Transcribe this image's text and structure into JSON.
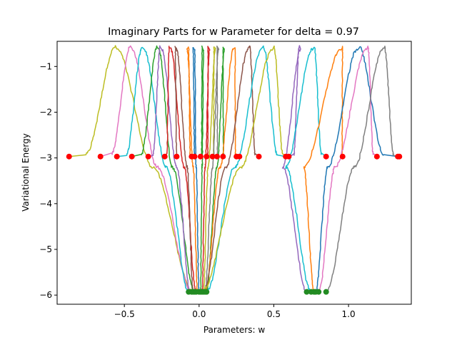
{
  "chart_data": {
    "type": "line",
    "title": "Imaginary Parts for w Parameter for delta = 0.97",
    "xlabel": "Parameters: w",
    "ylabel": "Variational Energy",
    "xlim": [
      -0.95,
      1.42
    ],
    "ylim": [
      -6.2,
      -0.45
    ],
    "xticks": [
      -0.5,
      0.0,
      0.5,
      1.0
    ],
    "xtick_labels": [
      "−0.5",
      "0.0",
      "0.5",
      "1.0"
    ],
    "yticks": [
      -6,
      -5,
      -4,
      -3,
      -2,
      -1
    ],
    "ytick_labels": [
      "−6",
      "−5",
      "−4",
      "−3",
      "−2",
      "−1"
    ],
    "grid": false,
    "legend": "none",
    "curve_shape": {
      "base": -2.97,
      "top": -0.62,
      "bottom": -5.93
    },
    "series": [
      {
        "color": "#bcbd22",
        "start": -0.87,
        "peak": -0.55,
        "fall": -0.31,
        "min": -0.04
      },
      {
        "color": "#e377c2",
        "start": -0.66,
        "peak": -0.45,
        "fall": -0.28,
        "min": -0.05
      },
      {
        "color": "#17becf",
        "start": -0.55,
        "peak": -0.37,
        "fall": -0.22,
        "min": -0.07
      },
      {
        "color": "#2ca02c",
        "start": -0.45,
        "peak": -0.27,
        "fall": -0.18,
        "min": -0.03
      },
      {
        "color": "#9467bd",
        "start": -0.34,
        "peak": -0.25,
        "fall": -0.15,
        "min": -0.06
      },
      {
        "color": "#d62728",
        "start": -0.23,
        "peak": -0.19,
        "fall": -0.1,
        "min": -0.02
      },
      {
        "color": "#8c564b",
        "start": -0.15,
        "peak": -0.15,
        "fall": -0.08,
        "min": -0.04
      },
      {
        "color": "#ff7f0e",
        "start": -0.05,
        "peak": -0.08,
        "fall": -0.04,
        "min": -0.01
      },
      {
        "color": "#1f77b4",
        "start": -0.03,
        "peak": -0.03,
        "fall": -0.02,
        "min": 0.0
      },
      {
        "color": "#2ca02c",
        "start": 0.01,
        "peak": 0.03,
        "fall": 0.02,
        "min": 0.01
      },
      {
        "color": "#d62728",
        "start": 0.05,
        "peak": 0.07,
        "fall": 0.04,
        "min": 0.02
      },
      {
        "color": "#bcbd22",
        "start": 0.09,
        "peak": 0.11,
        "fall": 0.06,
        "min": 0.03
      },
      {
        "color": "#7f7f7f",
        "start": 0.12,
        "peak": 0.13,
        "fall": 0.09,
        "min": 0.04
      },
      {
        "color": "#2ca02c",
        "start": 0.16,
        "peak": 0.17,
        "fall": 0.12,
        "min": 0.05
      },
      {
        "color": "#ff7f0e",
        "start": 0.25,
        "peak": 0.23,
        "fall": 0.14,
        "min": 0.04
      },
      {
        "color": "#8c564b",
        "start": 0.4,
        "peak": 0.33,
        "fall": 0.18,
        "min": 0.03
      },
      {
        "color": "#17becf",
        "start": 0.58,
        "peak": 0.42,
        "fall": 0.24,
        "min": 0.05
      },
      {
        "color": "#bcbd22",
        "start": 0.6,
        "peak": 0.49,
        "fall": 0.28,
        "min": 0.02
      },
      {
        "color": "#9467bd",
        "start": 0.61,
        "peak": 0.68,
        "fall": 0.56,
        "min": 0.72
      },
      {
        "color": "#17becf",
        "start": 0.85,
        "peak": 0.76,
        "fall": 0.58,
        "min": 0.75
      },
      {
        "color": "#ff7f0e",
        "start": 0.96,
        "peak": 0.95,
        "fall": 0.7,
        "min": 0.77
      },
      {
        "color": "#1f77b4",
        "start": 1.33,
        "peak": 1.06,
        "fall": 0.86,
        "min": 0.78
      },
      {
        "color": "#e377c2",
        "start": 1.19,
        "peak": 1.12,
        "fall": 0.91,
        "min": 0.8
      },
      {
        "color": "#7f7f7f",
        "start": 1.34,
        "peak": 1.23,
        "fall": 1.04,
        "min": 0.85
      }
    ],
    "start_points": {
      "color": "#ff0000",
      "y": -2.97,
      "x": [
        -0.87,
        -0.66,
        -0.55,
        -0.45,
        -0.34,
        -0.23,
        -0.15,
        -0.05,
        -0.03,
        0.01,
        0.05,
        0.09,
        0.12,
        0.16,
        0.25,
        0.27,
        0.4,
        0.58,
        0.6,
        0.85,
        0.96,
        1.19,
        1.33,
        1.34
      ]
    },
    "min_points": {
      "color": "#228b22",
      "y": -5.93,
      "x": [
        -0.07,
        -0.05,
        -0.04,
        -0.03,
        -0.02,
        0.0,
        0.01,
        0.02,
        0.03,
        0.04,
        0.05,
        0.72,
        0.75,
        0.77,
        0.78,
        0.8,
        0.85
      ]
    }
  }
}
